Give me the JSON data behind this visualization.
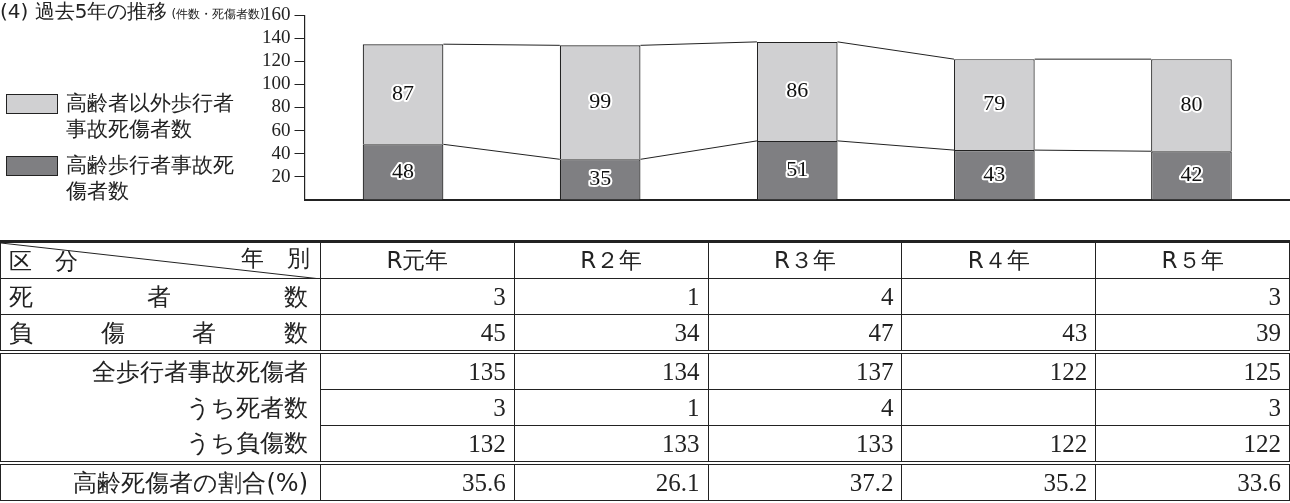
{
  "chart_data": [
    {
      "type": "bar",
      "title": "(4) 過去5年の推移",
      "subtitle": "(件数・死傷者数)",
      "categories": [
        null,
        null,
        null,
        null,
        null
      ],
      "stacked": true,
      "data_labels": true,
      "legend": "left",
      "ylim": [
        0,
        160
      ],
      "yticks": [
        20,
        40,
        60,
        80,
        100,
        120,
        140,
        160
      ],
      "series": [
        {
          "name": "高齢歩行者事故死傷者数",
          "color": "#7f7f82",
          "values": [
            48,
            35,
            51,
            43,
            42
          ]
        },
        {
          "name": "高齢者以外歩行者事故死傷者数",
          "color": "#d0d0d2",
          "values": [
            87,
            99,
            86,
            79,
            80
          ]
        }
      ]
    },
    {
      "type": "other",
      "data_labels": true,
      "xlabel": "年　別",
      "ylabel": "区　分",
      "categories": [
        "R元年",
        "R２年",
        "R３年",
        "R４年",
        "R５年"
      ],
      "series": [
        {
          "name": "死者数",
          "values": [
            3,
            1,
            4,
            null,
            3
          ]
        },
        {
          "name": "負傷者数",
          "values": [
            45,
            34,
            47,
            43,
            39
          ]
        },
        {
          "name": "全歩行者事故死傷者",
          "values": [
            135,
            134,
            137,
            122,
            125
          ]
        },
        {
          "name": "うち死者数",
          "values": [
            3,
            1,
            4,
            null,
            3
          ]
        },
        {
          "name": "うち負傷数",
          "values": [
            132,
            133,
            133,
            122,
            122
          ]
        },
        {
          "name": "高齢死傷者の割合(%)",
          "values": [
            35.6,
            26.1,
            37.2,
            35.2,
            33.6
          ]
        }
      ]
    }
  ]
}
